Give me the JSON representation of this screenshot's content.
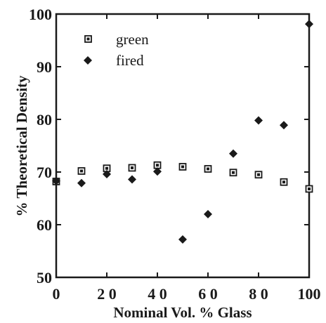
{
  "chart_data": {
    "type": "scatter",
    "title": "",
    "xlabel": "Nominal Vol. % Glass",
    "ylabel": "% Theoretical Density",
    "xlim": [
      0,
      100
    ],
    "ylim": [
      50,
      100
    ],
    "x_ticks": [
      "0",
      "2 0",
      "4 0",
      "6 0",
      "8 0",
      "100"
    ],
    "x_tick_values": [
      0,
      20,
      40,
      60,
      80,
      100
    ],
    "y_ticks": [
      "50",
      "60",
      "70",
      "80",
      "90",
      "100"
    ],
    "y_tick_values": [
      50,
      60,
      70,
      80,
      90,
      100
    ],
    "grid": false,
    "legend": "top-left",
    "series": [
      {
        "name": "green",
        "marker": "square",
        "color": "#1a1a1a",
        "x": [
          0,
          10,
          20,
          30,
          40,
          50,
          60,
          70,
          80,
          90,
          100
        ],
        "y": [
          68.2,
          70.2,
          70.7,
          70.8,
          71.3,
          71.0,
          70.6,
          69.9,
          69.5,
          68.1,
          66.8
        ]
      },
      {
        "name": "fired",
        "marker": "diamond",
        "color": "#1a1a1a",
        "x": [
          0,
          10,
          20,
          30,
          40,
          50,
          60,
          70,
          80,
          90,
          100
        ],
        "y": [
          68.3,
          67.9,
          69.6,
          68.6,
          70.1,
          57.2,
          62.0,
          73.5,
          79.8,
          78.9,
          98.1
        ]
      }
    ]
  }
}
